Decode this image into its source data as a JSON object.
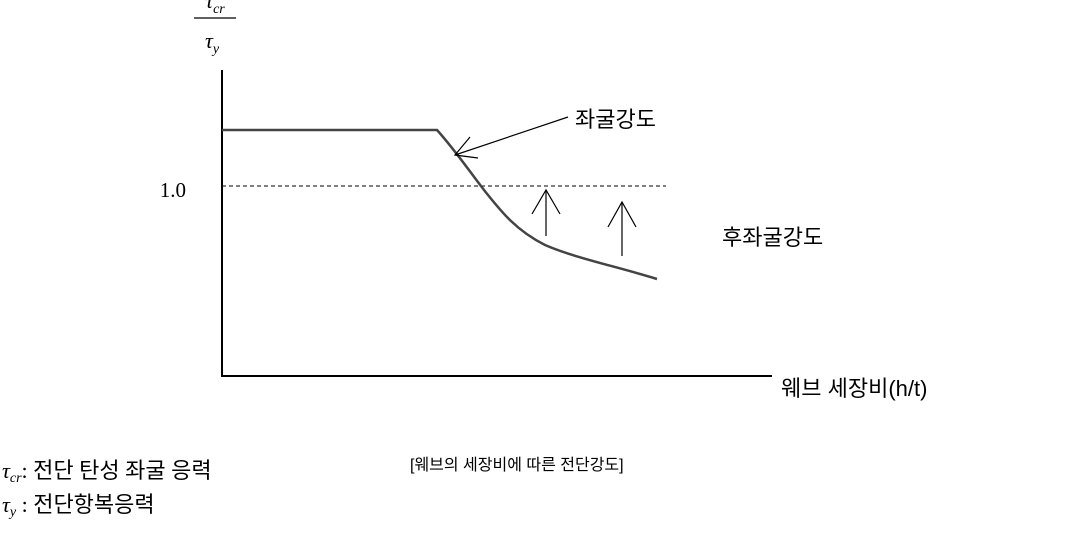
{
  "y_axis_label": {
    "numerator": {
      "symbol": "τ",
      "subscript": "cr"
    },
    "denominator": {
      "symbol": "τ",
      "subscript": "y"
    }
  },
  "reference_label": "1.0",
  "annotations": {
    "buckling": "좌굴강도",
    "post_buckling": "후좌굴강도"
  },
  "x_axis_label": "웨브 세장비(h/t)",
  "caption": "[웨브의 세장비에 따른 전단강도]",
  "legend": [
    {
      "symbol": "τ",
      "subscript": "cr",
      "text": ": 전단 탄성 좌굴 응력"
    },
    {
      "symbol": "τ",
      "subscript": "y",
      "text": " : 전단항복응력"
    }
  ]
}
